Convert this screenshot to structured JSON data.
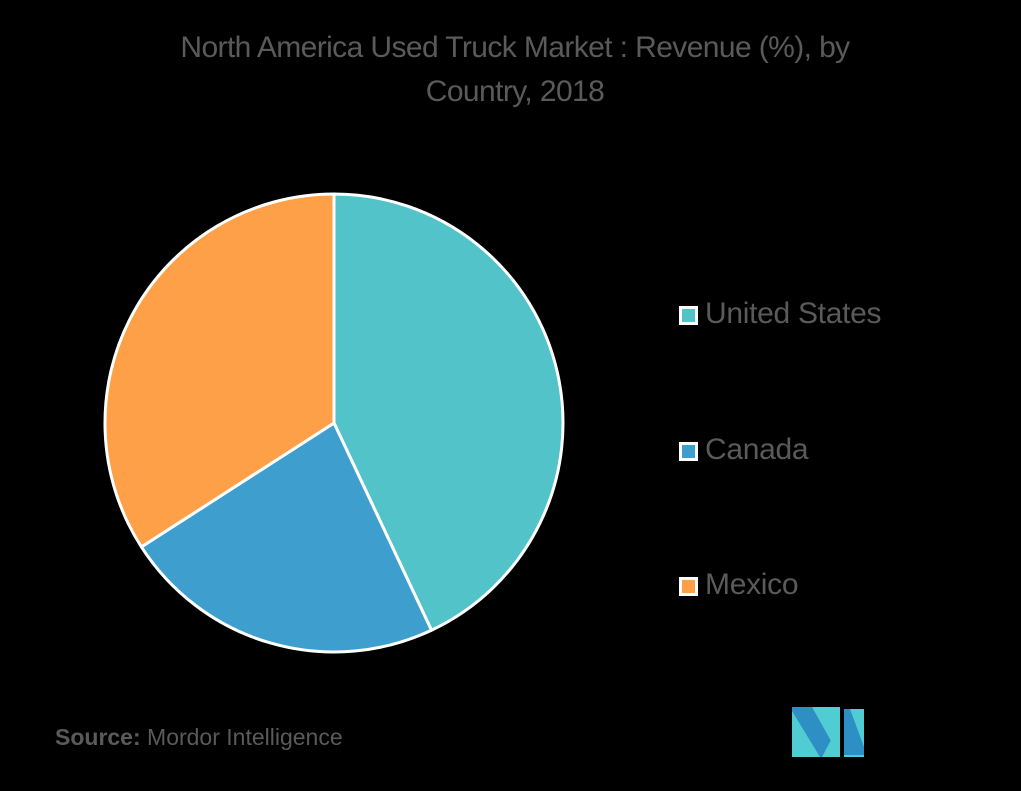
{
  "title": {
    "line1": "North America Used Truck Market : Revenue (%), by",
    "line2": "Country, 2018"
  },
  "legend": {
    "items": [
      {
        "label": "United States",
        "color": "#52c3c8"
      },
      {
        "label": "Canada",
        "color": "#3e9ecd"
      },
      {
        "label": "Mexico",
        "color": "#fda048"
      }
    ]
  },
  "source": {
    "label": "Source:",
    "value": "Mordor Intelligence"
  },
  "logo": {
    "icon": "mordor-intelligence-logo-icon",
    "colors": [
      "#4fcdd3",
      "#2e8fc4"
    ]
  },
  "chart_data": {
    "type": "pie",
    "title": "North America Used Truck Market : Revenue (%), by Country, 2018",
    "categories": [
      "United States",
      "Canada",
      "Mexico"
    ],
    "values": [
      43.0,
      22.9,
      34.1
    ],
    "colors": [
      "#52c3c8",
      "#3e9ecd",
      "#fda048"
    ],
    "start_angle_deg": 0,
    "direction": "clockwise",
    "data_labels": false,
    "legend_position": "right",
    "unit": "%",
    "source": "Mordor Intelligence"
  }
}
